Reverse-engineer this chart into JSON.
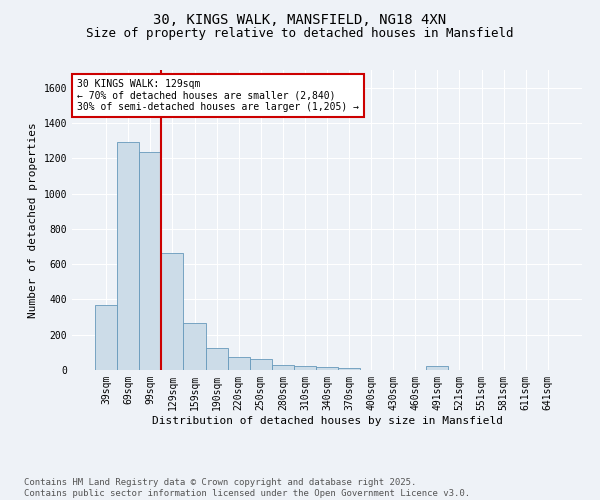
{
  "title": "30, KINGS WALK, MANSFIELD, NG18 4XN",
  "subtitle": "Size of property relative to detached houses in Mansfield",
  "xlabel": "Distribution of detached houses by size in Mansfield",
  "ylabel": "Number of detached properties",
  "categories": [
    "39sqm",
    "69sqm",
    "99sqm",
    "129sqm",
    "159sqm",
    "190sqm",
    "220sqm",
    "250sqm",
    "280sqm",
    "310sqm",
    "340sqm",
    "370sqm",
    "400sqm",
    "430sqm",
    "460sqm",
    "491sqm",
    "521sqm",
    "551sqm",
    "581sqm",
    "611sqm",
    "641sqm"
  ],
  "values": [
    370,
    1290,
    1235,
    665,
    265,
    125,
    75,
    65,
    30,
    20,
    15,
    10,
    0,
    0,
    0,
    20,
    0,
    0,
    0,
    0,
    0
  ],
  "bar_color": "#ccdce8",
  "bar_edge_color": "#6699bb",
  "annotation_text": "30 KINGS WALK: 129sqm\n← 70% of detached houses are smaller (2,840)\n30% of semi-detached houses are larger (1,205) →",
  "annotation_box_color": "#ffffff",
  "annotation_box_edge": "#cc0000",
  "ylim": [
    0,
    1700
  ],
  "yticks": [
    0,
    200,
    400,
    600,
    800,
    1000,
    1200,
    1400,
    1600
  ],
  "footer_text": "Contains HM Land Registry data © Crown copyright and database right 2025.\nContains public sector information licensed under the Open Government Licence v3.0.",
  "background_color": "#eef2f7",
  "grid_color": "#ffffff",
  "title_fontsize": 10,
  "subtitle_fontsize": 9,
  "axis_label_fontsize": 8,
  "tick_fontsize": 7,
  "footer_fontsize": 6.5
}
